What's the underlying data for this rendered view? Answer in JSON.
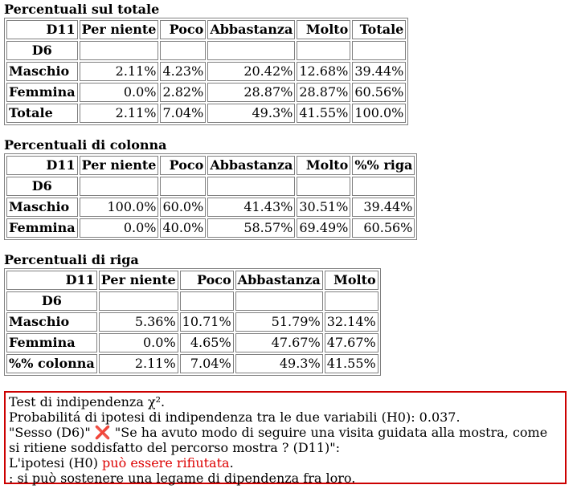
{
  "tables": [
    {
      "title": "Percentuali sul totale",
      "corner_label": "D11",
      "row_var_label": "D6",
      "columns": [
        "Per niente",
        "Poco",
        "Abbastanza",
        "Molto",
        "Totale"
      ],
      "rows": [
        {
          "label": "Maschio",
          "values": [
            "2.11%",
            "4.23%",
            "20.42%",
            "12.68%",
            "39.44%"
          ]
        },
        {
          "label": "Femmina",
          "values": [
            "0.0%",
            "2.82%",
            "28.87%",
            "28.87%",
            "60.56%"
          ]
        },
        {
          "label": "Totale",
          "values": [
            "2.11%",
            "7.04%",
            "49.3%",
            "41.55%",
            "100.0%"
          ]
        }
      ]
    },
    {
      "title": "Percentuali di colonna",
      "corner_label": "D11",
      "row_var_label": "D6",
      "columns": [
        "Per niente",
        "Poco",
        "Abbastanza",
        "Molto",
        "%% riga"
      ],
      "rows": [
        {
          "label": "Maschio",
          "values": [
            "100.0%",
            "60.0%",
            "41.43%",
            "30.51%",
            "39.44%"
          ]
        },
        {
          "label": "Femmina",
          "values": [
            "0.0%",
            "40.0%",
            "58.57%",
            "69.49%",
            "60.56%"
          ]
        }
      ]
    },
    {
      "title": "Percentuali di riga",
      "corner_label": "D11",
      "row_var_label": "D6",
      "columns": [
        "Per niente",
        "Poco",
        "Abbastanza",
        "Molto"
      ],
      "rows": [
        {
          "label": "Maschio",
          "values": [
            "5.36%",
            "10.71%",
            "51.79%",
            "32.14%"
          ]
        },
        {
          "label": "Femmina",
          "values": [
            "0.0%",
            "4.65%",
            "47.67%",
            "47.67%"
          ]
        },
        {
          "label": "%% colonna",
          "values": [
            "2.11%",
            "7.04%",
            "49.3%",
            "41.55%"
          ]
        }
      ]
    }
  ],
  "test": {
    "line1": "Test di indipendenza χ².",
    "line2": "Probabilitá di ipotesi di indipendenza tra le due variabili (H0): 0.037.",
    "line3_prefix": "\"Sesso (D6)\"",
    "cross_icon": "cross-icon",
    "line3_suffix": "\"Se ha avuto modo di seguire una visita guidata alla mostra, come si ritiene soddisfatto del percorso mostra ? (D11)\":",
    "line4_prefix": "L'ipotesi (H0)",
    "line4_highlight": "può essere rifiutata",
    "line4_suffix": ".",
    "line5": ": si può sostenere una legame di dipendenza fra loro.",
    "highlight_color": "#dd0000",
    "border_color": "#cc0000"
  }
}
